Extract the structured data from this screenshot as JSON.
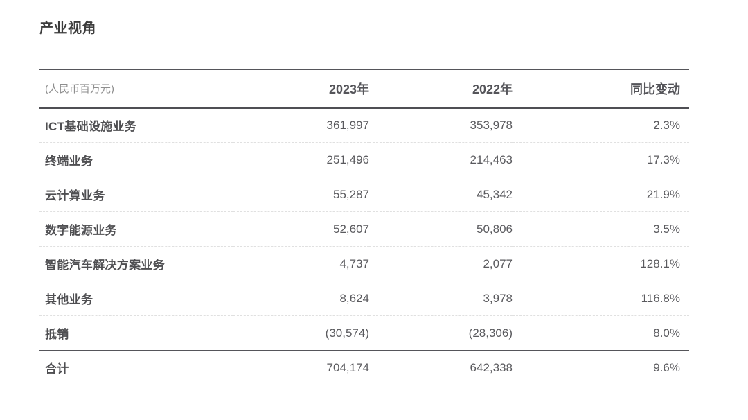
{
  "page": {
    "title": "产业视角"
  },
  "table": {
    "unit_label": "(人民币百万元)",
    "columns": {
      "y2023": "2023年",
      "y2022": "2022年",
      "yoy": "同比变动"
    },
    "rows": [
      {
        "label": "ICT基础设施业务",
        "y2023": "361,997",
        "y2022": "353,978",
        "yoy": "2.3%"
      },
      {
        "label": "终端业务",
        "y2023": "251,496",
        "y2022": "214,463",
        "yoy": "17.3%"
      },
      {
        "label": "云计算业务",
        "y2023": "55,287",
        "y2022": "45,342",
        "yoy": "21.9%"
      },
      {
        "label": "数字能源业务",
        "y2023": "52,607",
        "y2022": "50,806",
        "yoy": "3.5%"
      },
      {
        "label": "智能汽车解决方案业务",
        "y2023": "4,737",
        "y2022": "2,077",
        "yoy": "128.1%"
      },
      {
        "label": "其他业务",
        "y2023": "8,624",
        "y2022": "3,978",
        "yoy": "116.8%"
      },
      {
        "label": "抵销",
        "y2023": "(30,574)",
        "y2022": "(28,306)",
        "yoy": "8.0%"
      },
      {
        "label": "合计",
        "y2023": "704,174",
        "y2022": "642,338",
        "yoy": "9.6%"
      }
    ],
    "colors": {
      "rule_dark": "#55555a",
      "rule_dashed": "#e0e0e0",
      "text_title": "#3c3c3c",
      "text_label": "#4f4f52",
      "text_value": "#5a5a5e",
      "text_muted": "#8e8e8e"
    }
  }
}
